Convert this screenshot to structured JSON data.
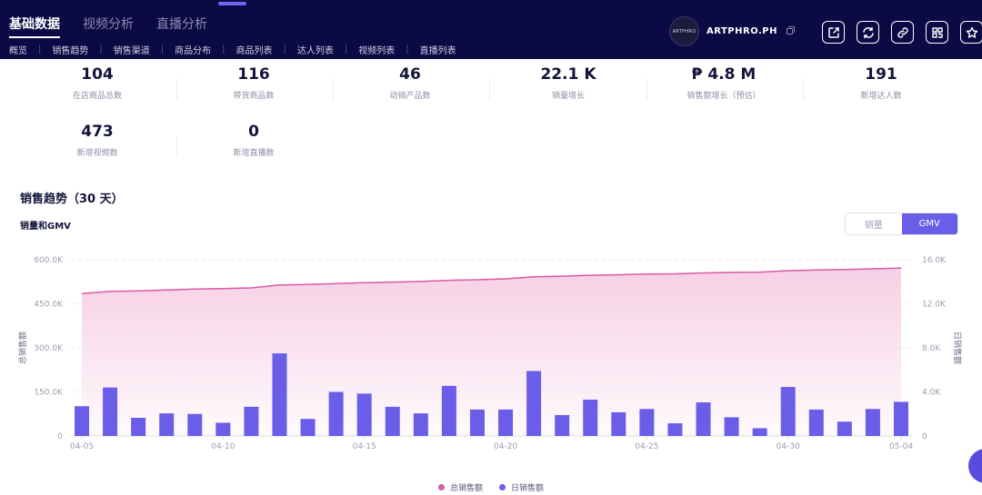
{
  "header": {
    "tabs": [
      {
        "label": "基础数据"
      },
      {
        "label": "视频分析"
      },
      {
        "label": "直播分析"
      }
    ],
    "subnav": [
      "概览",
      "销售趋势",
      "销售渠道",
      "商品分布",
      "商品列表",
      "达人列表",
      "视频列表",
      "直播列表"
    ],
    "shop": {
      "avatar_text": "ARTPHRO",
      "name": "ARTPHRO.PH"
    },
    "icons": [
      "share-icon",
      "refresh-icon",
      "link-icon",
      "qr-icon",
      "star-icon"
    ]
  },
  "stats": [
    {
      "value": "104",
      "label": "在店商品总数"
    },
    {
      "value": "116",
      "label": "带货商品数"
    },
    {
      "value": "46",
      "label": "动销产品数"
    },
    {
      "value": "22.1 K",
      "label": "销量增长"
    },
    {
      "value": "₱ 4.8 M",
      "label": "销售额增长（预估）"
    },
    {
      "value": "191",
      "label": "新增达人数"
    },
    {
      "value": "473",
      "label": "新增视频数"
    },
    {
      "value": "0",
      "label": "新增直播数"
    }
  ],
  "section_title": "销售趋势（30 天）",
  "chart_title": "销量和GMV",
  "toggle": {
    "options": [
      "销量",
      "GMV"
    ],
    "selected": "GMV"
  },
  "colors": {
    "navy": "#0b0a45",
    "accent": "#6a5ee8",
    "line": "#d959a6",
    "area": "#f6cde3"
  },
  "chart_data": {
    "type": "bar",
    "title": "",
    "x": [
      "04-05",
      "04-06",
      "04-07",
      "04-08",
      "04-09",
      "04-10",
      "04-11",
      "04-12",
      "04-13",
      "04-14",
      "04-15",
      "04-16",
      "04-17",
      "04-18",
      "04-19",
      "04-20",
      "04-21",
      "04-22",
      "04-23",
      "04-24",
      "04-25",
      "04-26",
      "04-27",
      "04-28",
      "04-29",
      "04-30",
      "05-01",
      "05-02",
      "05-03",
      "05-04"
    ],
    "x_tick_labels": [
      "04-05",
      "04-10",
      "04-15",
      "04-20",
      "04-25",
      "04-30",
      "05-04"
    ],
    "series": [
      {
        "name": "总销售额",
        "type": "area",
        "axis": "left",
        "values": [
          485000,
          492000,
          494000,
          497000,
          500000,
          502000,
          504000,
          514000,
          516000,
          519000,
          522000,
          524000,
          526000,
          530000,
          532000,
          535000,
          542000,
          544000,
          547000,
          549000,
          551000,
          552000,
          555000,
          557000,
          558000,
          563000,
          565000,
          567000,
          569000,
          572000
        ]
      },
      {
        "name": "日销售额",
        "type": "bar",
        "axis": "right",
        "values": [
          2700,
          4400,
          1650,
          2050,
          2000,
          1200,
          2650,
          7500,
          1550,
          4000,
          3850,
          2650,
          2050,
          4550,
          2400,
          2400,
          5900,
          1900,
          3300,
          2150,
          2450,
          1150,
          3050,
          1700,
          700,
          4450,
          2400,
          1300,
          2450,
          3100
        ]
      }
    ],
    "y_left": {
      "label": "总销售额",
      "ylim": [
        0,
        600000
      ],
      "ticks": [
        "0",
        "150.0K",
        "300.0K",
        "450.0K",
        "600.0K"
      ]
    },
    "y_right": {
      "label": "日销售额",
      "ylim": [
        0,
        16000
      ],
      "ticks": [
        "0",
        "4.0K",
        "8.0K",
        "12.0K",
        "16.0K"
      ]
    },
    "grid": true,
    "legend_position": "bottom-center"
  }
}
